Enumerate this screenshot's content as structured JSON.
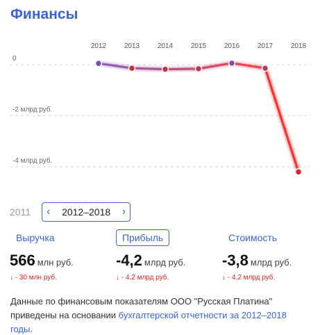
{
  "section": {
    "title": "Финансы"
  },
  "chart_data": {
    "type": "line",
    "x": [
      "2012",
      "2013",
      "2014",
      "2015",
      "2016",
      "2017",
      "2018"
    ],
    "values": [
      0.05,
      -0.14,
      -0.18,
      -0.16,
      0.06,
      -0.14,
      -4.2
    ],
    "ylim": [
      -4.6,
      0.3
    ],
    "yticks": [
      0,
      -2,
      -4
    ],
    "ytick_labels": [
      "0",
      "-2 млрд руб.",
      "-4 млрд руб."
    ],
    "grid": true,
    "colors": {
      "line_start": "#7b4fb0",
      "line_end": "#ee2c2c",
      "drop": "#ff2a2a"
    }
  },
  "year_selector": {
    "previous_year": "2011",
    "range": "2012–2018",
    "prev_icon": "chevron-left-icon",
    "next_icon": "chevron-right-icon"
  },
  "metrics": [
    {
      "label": "Выручка",
      "value": "566",
      "unit": "млн руб.",
      "change": "↓ - 30 млн руб."
    },
    {
      "label": "Прибыль",
      "value": "-4,2",
      "unit": "млрд руб.",
      "change": "↓ - 4,2 млрд руб."
    },
    {
      "label": "Стоимость",
      "value": "-3,8",
      "unit": "млрд руб.",
      "change": "↓ - 4,2 млрд руб."
    }
  ],
  "footnote": {
    "text": "Данные по финансовым показателям ООО \"Русская Платина\" приведены на основании ",
    "link": "бухгалтерской отчетности за 2012–2018 годы",
    "end": "."
  }
}
